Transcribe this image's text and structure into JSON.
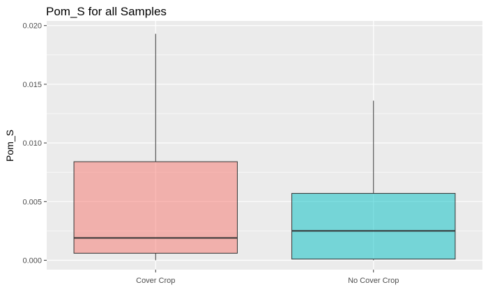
{
  "chart_data": {
    "type": "boxplot",
    "title": "Pom_S for all Samples",
    "xlabel": "",
    "ylabel": "Pom_S",
    "ylim": [
      -0.0008,
      0.0204
    ],
    "y_ticks": [
      "0.000",
      "0.005",
      "0.010",
      "0.015",
      "0.020"
    ],
    "y_tick_values": [
      0.0,
      0.005,
      0.01,
      0.015,
      0.02
    ],
    "categories": [
      "Cover Crop",
      "No Cover Crop"
    ],
    "boxes": [
      {
        "category": "Cover Crop",
        "min": 0.0,
        "q1": 0.0006,
        "median": 0.0019,
        "q3": 0.0084,
        "max": 0.0193,
        "color": "#F8766D"
      },
      {
        "category": "No Cover Crop",
        "min": 0.0,
        "q1": 0.0001,
        "median": 0.0025,
        "q3": 0.0057,
        "max": 0.0136,
        "color": "#00BFC4"
      }
    ],
    "grid": true,
    "legend": "none",
    "panel_background": "#EBEBEB"
  }
}
